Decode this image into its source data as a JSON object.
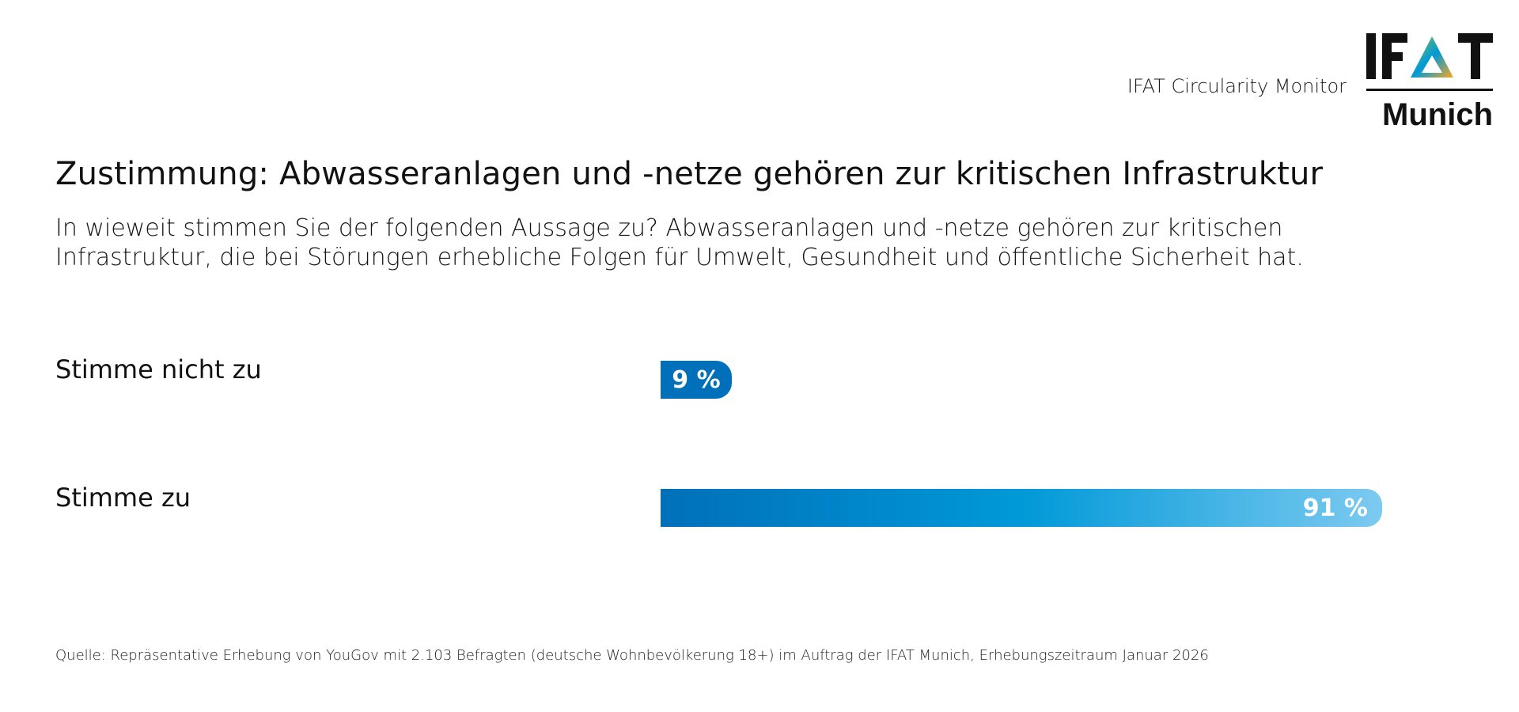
{
  "header": {
    "caption": "IFAT Circularity Monitor",
    "logo_text_top": "IFAT",
    "logo_text_bottom": "Munich"
  },
  "chart_data": {
    "type": "bar",
    "orientation": "horizontal",
    "title": "Zustimmung: Abwasseranlagen und -netze gehören zur kritischen Infrastruktur",
    "subtitle": "In wieweit stimmen Sie der folgenden Aussage zu? Abwasseranlagen und -netze gehören zur kritischen Infrastruktur, die bei Störungen erhebliche Folgen für Umwelt, Gesundheit und öffentliche Sicherheit hat.",
    "categories": [
      "Stimme nicht zu",
      "Stimme zu"
    ],
    "values": [
      9,
      91
    ],
    "value_labels": [
      "9 %",
      "91 %"
    ],
    "unit": "%",
    "xlim": [
      0,
      100
    ],
    "grid": false,
    "legend": "none",
    "colors": {
      "bar_dark": "#0070BA",
      "bar_mid": "#0099D8",
      "bar_light": "#7CCAF0"
    }
  },
  "footer": {
    "source": "Quelle: Repräsentative Erhebung von YouGov mit 2.103 Befragten (deutsche Wohnbevölkerung 18+) im Auftrag der IFAT Munich, Erhebungszeitraum Januar 2026"
  }
}
